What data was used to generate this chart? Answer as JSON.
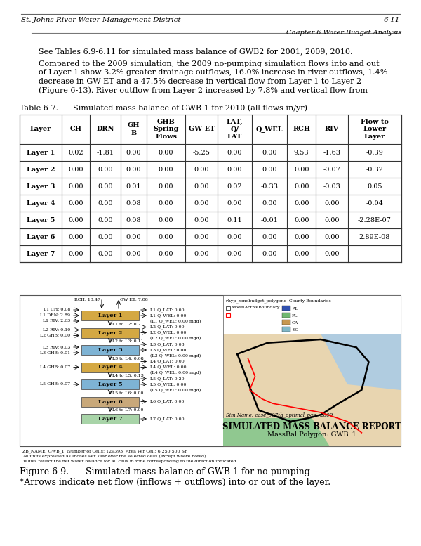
{
  "header_text": "Chapter 6 Water Budget Analysis",
  "para1": "See Tables 6.9-6.11 for simulated mass balance of GWB2 for 2001, 2009, 2010.",
  "para2_lines": [
    "Compared to the 2009 simulation, the 2009 no-pumping simulation flows into and out",
    "of Layer 1 show 3.2% greater drainage outflows, 16.0% increase in river outflows, 1.4%",
    "decrease in GW ET and a 47.5% decrease in vertical flow from Layer 1 to Layer 2",
    "(Figure 6-13). River outflow from Layer 2 increased by 7.8% and vertical flow from"
  ],
  "table_title": "Table 6-7.      Simulated mass balance of GWB 1 for 2010 (all flows in/yr)",
  "col_headers": [
    "Layer",
    "CH",
    "DRN",
    "GH\nB",
    "GHB\nSpring\nFlows",
    "GW ET",
    "LAT,\nQ/\nLAT",
    "Q_WEL",
    "RCH",
    "RIV",
    "Flow to\nLower\nLayer"
  ],
  "table_data": [
    [
      "Layer 1",
      "0.02",
      "-1.81",
      "0.00",
      "0.00",
      "-5.25",
      "0.00",
      "0.00",
      "9.53",
      "-1.63",
      "-0.39"
    ],
    [
      "Layer 2",
      "0.00",
      "0.00",
      "0.00",
      "0.00",
      "0.00",
      "0.00",
      "0.00",
      "0.00",
      "-0.07",
      "-0.32"
    ],
    [
      "Layer 3",
      "0.00",
      "0.00",
      "0.01",
      "0.00",
      "0.00",
      "0.02",
      "-0.33",
      "0.00",
      "-0.03",
      "0.05"
    ],
    [
      "Layer 4",
      "0.00",
      "0.00",
      "0.08",
      "0.00",
      "0.00",
      "0.00",
      "0.00",
      "0.00",
      "0.00",
      "-0.04"
    ],
    [
      "Layer 5",
      "0.00",
      "0.00",
      "0.08",
      "0.00",
      "0.00",
      "0.11",
      "-0.01",
      "0.00",
      "0.00",
      "-2.28E-07"
    ],
    [
      "Layer 6",
      "0.00",
      "0.00",
      "0.00",
      "0.00",
      "0.00",
      "0.00",
      "0.00",
      "0.00",
      "0.00",
      "2.89E-08"
    ],
    [
      "Layer 7",
      "0.00",
      "0.00",
      "0.00",
      "0.00",
      "0.00",
      "0.00",
      "0.00",
      "0.00",
      "0.00",
      ""
    ]
  ],
  "figure_caption_line1": "Figure 6-9.      Simulated mass balance of GWB 1 for no-pumping",
  "figure_caption_line2": "*Arrows indicate net flow (inflows + outflows) into or out of the layer.",
  "footer_left": "St. Johns River Water Management District",
  "footer_right": "6-11",
  "bg_color": "#ffffff",
  "layer_colors": {
    "Layer 1": "#d4a843",
    "Layer 2": "#d4a843",
    "Layer 3": "#7eb3d4",
    "Layer 4": "#d4a843",
    "Layer 5": "#7eb3d4",
    "Layer 6": "#c8a87a",
    "Layer 7": "#a8d4a8"
  },
  "map_color": "#e8d5b0",
  "map_water_color": "#b0cce0",
  "map_green_color": "#90c890"
}
